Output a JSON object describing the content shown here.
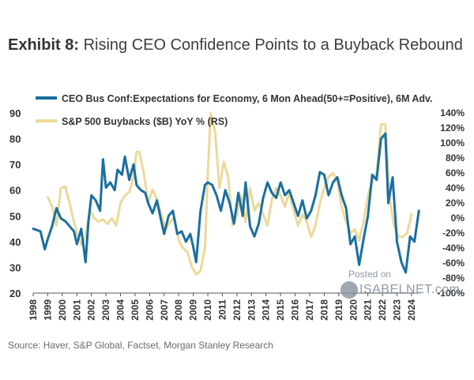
{
  "title": {
    "bold": "Exhibit 8:",
    "rest": "Rising CEO Confidence Points to a Buyback Rebound"
  },
  "source": "Source: Haver, S&P Global, Factset, Morgan Stanley Research",
  "watermark": {
    "line1": "Posted on",
    "line2": "ISABELNET.com"
  },
  "chart_data": {
    "type": "line",
    "legend_position": "top-left",
    "x_ticks": [
      "1998",
      "1999",
      "2000",
      "2001",
      "2002",
      "2003",
      "2004",
      "2005",
      "2006",
      "2007",
      "2008",
      "2009",
      "2010",
      "2011",
      "2012",
      "2013",
      "2014",
      "2015",
      "2016",
      "2017",
      "2018",
      "2019",
      "2020",
      "2021",
      "2022",
      "2023",
      "2024"
    ],
    "y_left": {
      "min": 20,
      "max": 90,
      "ticks": [
        "20",
        "30",
        "40",
        "50",
        "60",
        "70",
        "80",
        "90"
      ]
    },
    "y_right": {
      "min": -100,
      "max": 140,
      "ticks": [
        "-100%",
        "-80%",
        "-60%",
        "-40%",
        "-20%",
        "0%",
        "20%",
        "40%",
        "60%",
        "80%",
        "100%",
        "120%",
        "140%"
      ]
    },
    "series": [
      {
        "name": "CEO Bus Conf:Expectations for Economy, 6 Mon Ahead(50+=Positive), 6M Adv.",
        "color": "#1a6fa0",
        "axis": "left",
        "x": [
          1998.0,
          1998.5,
          1998.8,
          1999.0,
          1999.3,
          1999.6,
          1999.9,
          2000.2,
          2000.5,
          2000.8,
          2001.0,
          2001.3,
          2001.6,
          2001.8,
          2002.0,
          2002.3,
          2002.6,
          2002.8,
          2003.0,
          2003.3,
          2003.6,
          2003.8,
          2004.1,
          2004.3,
          2004.6,
          2004.9,
          2005.1,
          2005.4,
          2005.7,
          2005.9,
          2006.2,
          2006.5,
          2006.8,
          2007.0,
          2007.3,
          2007.6,
          2007.9,
          2008.2,
          2008.5,
          2008.8,
          2009.0,
          2009.2,
          2009.5,
          2009.8,
          2010.0,
          2010.3,
          2010.6,
          2010.9,
          2011.2,
          2011.5,
          2011.8,
          2012.1,
          2012.4,
          2012.6,
          2012.9,
          2013.2,
          2013.5,
          2013.8,
          2014.1,
          2014.4,
          2014.7,
          2015.0,
          2015.3,
          2015.6,
          2015.9,
          2016.2,
          2016.5,
          2016.8,
          2017.1,
          2017.4,
          2017.7,
          2018.0,
          2018.3,
          2018.6,
          2018.9,
          2019.2,
          2019.5,
          2019.8,
          2020.1,
          2020.4,
          2020.7,
          2021.0,
          2021.3,
          2021.6,
          2021.9,
          2022.2,
          2022.4,
          2022.7,
          2023.0,
          2023.3,
          2023.6,
          2023.9,
          2024.2,
          2024.5
        ],
        "values": [
          45,
          44,
          37,
          41,
          46,
          53,
          49,
          48,
          46,
          44,
          39,
          45,
          32,
          48,
          58,
          56,
          52,
          72,
          61,
          63,
          60,
          68,
          66,
          73,
          64,
          70,
          62,
          60,
          59,
          55,
          51,
          56,
          48,
          43,
          50,
          52,
          43,
          44,
          40,
          43,
          38,
          32,
          52,
          62,
          63,
          62,
          58,
          52,
          60,
          55,
          47,
          59,
          50,
          63,
          46,
          42,
          47,
          57,
          63,
          59,
          57,
          63,
          58,
          60,
          55,
          50,
          56,
          49,
          52,
          58,
          67,
          66,
          58,
          63,
          65,
          58,
          53,
          39,
          42,
          31,
          41,
          50,
          66,
          64,
          80,
          82,
          55,
          65,
          40,
          32,
          28,
          42,
          40,
          52
        ]
      },
      {
        "name": "S&P 500 Buybacks ($B) YoY % (RS)",
        "color": "#ecd99a",
        "axis": "right",
        "x": [
          1999.0,
          1999.3,
          1999.6,
          1999.9,
          2000.2,
          2000.5,
          2000.8,
          2001.0,
          2001.3,
          2001.6,
          2001.9,
          2002.2,
          2002.5,
          2002.8,
          2003.1,
          2003.4,
          2003.7,
          2004.0,
          2004.3,
          2004.6,
          2004.9,
          2005.1,
          2005.3,
          2005.6,
          2005.9,
          2006.2,
          2006.5,
          2006.8,
          2007.1,
          2007.4,
          2007.7,
          2008.0,
          2008.3,
          2008.6,
          2008.9,
          2009.2,
          2009.5,
          2009.8,
          2010.0,
          2010.2,
          2010.5,
          2010.8,
          2011.1,
          2011.4,
          2011.7,
          2012.0,
          2012.3,
          2012.6,
          2012.9,
          2013.2,
          2013.5,
          2013.8,
          2014.1,
          2014.4,
          2014.7,
          2015.0,
          2015.3,
          2015.6,
          2015.9,
          2016.2,
          2016.5,
          2016.8,
          2017.1,
          2017.4,
          2017.7,
          2018.0,
          2018.3,
          2018.6,
          2018.9,
          2019.2,
          2019.5,
          2019.8,
          2020.1,
          2020.4,
          2020.7,
          2021.0,
          2021.3,
          2021.6,
          2021.9,
          2022.2,
          2022.5,
          2022.8,
          2023.1,
          2023.4,
          2023.7,
          2024.0
        ],
        "values": [
          28,
          15,
          -10,
          40,
          42,
          20,
          -5,
          -20,
          -35,
          -25,
          10,
          0,
          -5,
          -2,
          -8,
          0,
          -10,
          20,
          30,
          35,
          55,
          88,
          88,
          60,
          20,
          38,
          25,
          5,
          -15,
          -5,
          0,
          -30,
          -40,
          -45,
          -65,
          -75,
          -70,
          -40,
          60,
          140,
          115,
          40,
          75,
          55,
          -10,
          5,
          30,
          -5,
          40,
          10,
          20,
          5,
          -10,
          25,
          40,
          30,
          15,
          35,
          10,
          -10,
          5,
          -5,
          -25,
          -10,
          20,
          40,
          55,
          60,
          50,
          15,
          -5,
          -20,
          -15,
          -30,
          -5,
          30,
          50,
          60,
          125,
          125,
          25,
          -10,
          -25,
          -25,
          -20,
          5
        ]
      }
    ]
  }
}
